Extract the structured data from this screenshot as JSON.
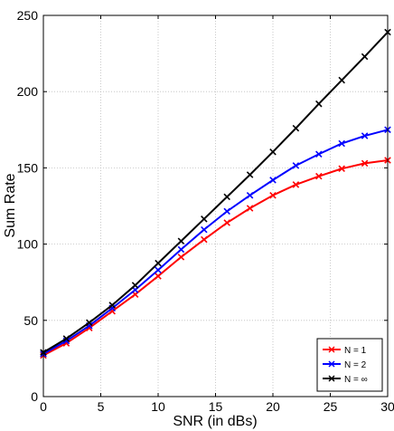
{
  "chart_data": {
    "type": "line",
    "title": "",
    "xlabel": "SNR (in dBs)",
    "ylabel": "Sum Rate",
    "xlim": [
      0,
      30
    ],
    "ylim": [
      0,
      250
    ],
    "xticks": [
      "0",
      "5",
      "10",
      "15",
      "20",
      "25",
      "30"
    ],
    "yticks": [
      "0",
      "50",
      "100",
      "150",
      "200",
      "250"
    ],
    "grid": true,
    "legend_position": "bottom-right",
    "x": [
      0,
      2,
      4,
      6,
      8,
      10,
      12,
      14,
      16,
      18,
      20,
      22,
      24,
      26,
      28,
      30
    ],
    "series": [
      {
        "name": "N = 1",
        "color": "#ff0000",
        "marker": "x",
        "values": [
          27,
          35,
          45,
          56,
          67,
          79,
          91.5,
          103,
          114,
          123.5,
          132,
          139,
          144.5,
          149.5,
          153,
          155
        ]
      },
      {
        "name": "N = 2",
        "color": "#0000ff",
        "marker": "x",
        "values": [
          28,
          36.5,
          46.5,
          58,
          70,
          83,
          96.5,
          109.5,
          121.5,
          132,
          142,
          151.5,
          159,
          166,
          171,
          175
        ]
      },
      {
        "name": "N = ∞",
        "color": "#000000",
        "marker": "x",
        "values": [
          29,
          38,
          48.5,
          60,
          73,
          87.5,
          102,
          116.5,
          131,
          145.5,
          160.5,
          176,
          192,
          207.5,
          223,
          239
        ]
      }
    ]
  }
}
